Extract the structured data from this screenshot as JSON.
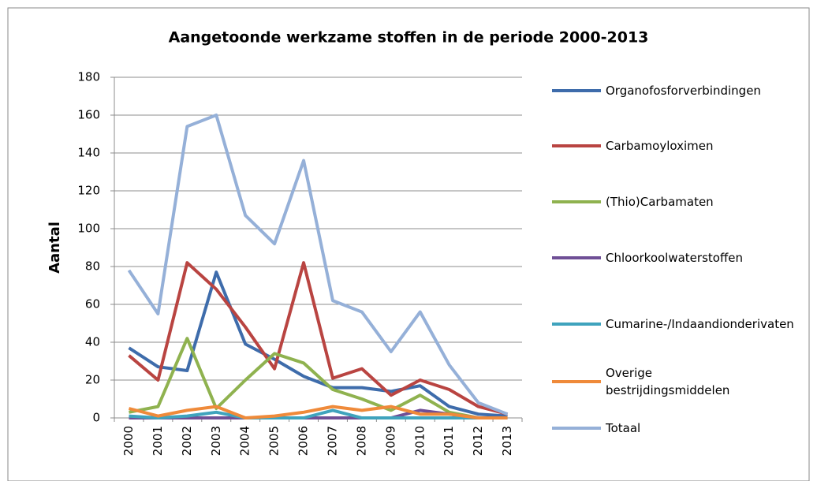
{
  "chart_data": {
    "type": "line",
    "title": "Aangetoonde werkzame stoffen in de periode 2000-2013",
    "y_label": "Aantal",
    "categories": [
      "2000",
      "2001",
      "2002",
      "2003",
      "2004",
      "2005",
      "2006",
      "2007",
      "2008",
      "2009",
      "2010",
      "2011",
      "2012",
      "2013"
    ],
    "series": [
      {
        "name": "Organofosforverbindingen",
        "color": "#3e6cab",
        "values": [
          37,
          27,
          25,
          77,
          39,
          31,
          22,
          16,
          16,
          14,
          17,
          6,
          2,
          1
        ]
      },
      {
        "name": "Carbamoyloximen",
        "color": "#b94441",
        "values": [
          33,
          20,
          82,
          68,
          48,
          26,
          82,
          21,
          26,
          12,
          20,
          15,
          6,
          2
        ]
      },
      {
        "name": "(Thio)Carbamaten",
        "color": "#8fb24f",
        "values": [
          3,
          6,
          42,
          5,
          20,
          34,
          29,
          15,
          10,
          4,
          12,
          3,
          0,
          0
        ]
      },
      {
        "name": "Chloorkoolwaterstoffen",
        "color": "#6f4f96",
        "values": [
          0,
          0,
          0,
          0,
          0,
          0,
          0,
          0,
          0,
          0,
          4,
          2,
          0,
          0
        ]
      },
      {
        "name": "Cumarine-/Indaandionderivaten",
        "color": "#3fa3bd",
        "values": [
          1,
          0,
          1,
          3,
          0,
          0,
          0,
          4,
          0,
          0,
          0,
          0,
          0,
          0
        ]
      },
      {
        "name": "Overige bestrijdingsmiddelen",
        "color": "#ef8a3a",
        "values": [
          5,
          1,
          4,
          6,
          0,
          1,
          3,
          6,
          4,
          6,
          2,
          2,
          0,
          0
        ]
      },
      {
        "name": "Totaal",
        "color": "#95b0d8",
        "values": [
          78,
          55,
          154,
          160,
          107,
          92,
          136,
          62,
          56,
          35,
          56,
          28,
          8,
          2
        ]
      }
    ],
    "ylim": [
      0,
      180
    ],
    "yticks": [
      0,
      20,
      40,
      60,
      80,
      100,
      120,
      140,
      160,
      180
    ],
    "grid": true,
    "legend": "right"
  }
}
